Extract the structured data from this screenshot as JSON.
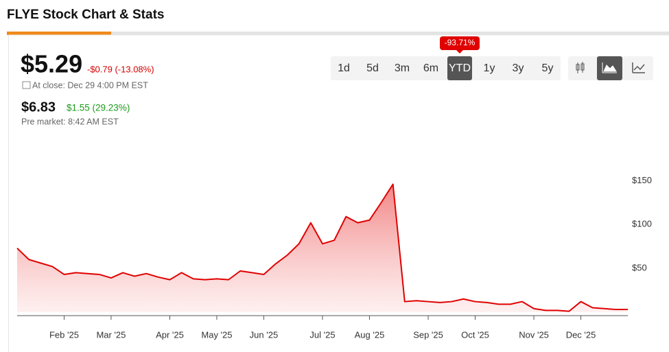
{
  "header": {
    "title": "FLYE Stock Chart & Stats"
  },
  "quote": {
    "price": "$5.29",
    "change": "-$0.79 (-13.08%)",
    "close_time": "At close: Dec 29 4:00 PM EST"
  },
  "premarket": {
    "price": "$6.83",
    "change": "$1.55 (29.23%)",
    "time": "Pre market: 8:42 AM EST"
  },
  "ranges": [
    "1d",
    "5d",
    "3m",
    "6m",
    "YTD",
    "1y",
    "3y",
    "5y"
  ],
  "active_range": 4,
  "range_badge": "-93.71%",
  "chart_data": {
    "type": "area",
    "color": "#e00000",
    "categories": [
      null,
      null,
      null,
      null,
      "Feb '25",
      null,
      null,
      null,
      "Mar '25",
      null,
      null,
      null,
      null,
      "Apr '25",
      null,
      null,
      null,
      "May '25",
      null,
      null,
      null,
      "Jun '25",
      null,
      null,
      null,
      null,
      "Jul '25",
      null,
      null,
      null,
      "Aug '25",
      null,
      null,
      null,
      null,
      "Sep '25",
      null,
      null,
      null,
      "Oct '25",
      null,
      null,
      null,
      null,
      "Nov '25",
      null,
      null,
      null,
      "Dec '25",
      null,
      null,
      null,
      null
    ],
    "values": [
      73,
      60,
      56,
      52,
      43,
      45,
      44,
      43,
      39,
      45,
      41,
      44,
      40,
      37,
      45,
      38,
      37,
      38,
      37,
      47,
      45,
      43,
      55,
      65,
      78,
      102,
      78,
      82,
      109,
      102,
      105,
      125,
      146,
      12,
      13,
      12,
      11,
      12,
      15,
      12,
      11,
      9,
      9,
      12,
      4,
      2,
      2,
      1,
      12,
      5,
      4,
      3,
      3
    ],
    "ylim": [
      -4,
      180
    ],
    "yticks": [
      {
        "value": 50,
        "label": "$50"
      },
      {
        "value": 100,
        "label": "$100"
      },
      {
        "value": 150,
        "label": "$150"
      }
    ]
  }
}
